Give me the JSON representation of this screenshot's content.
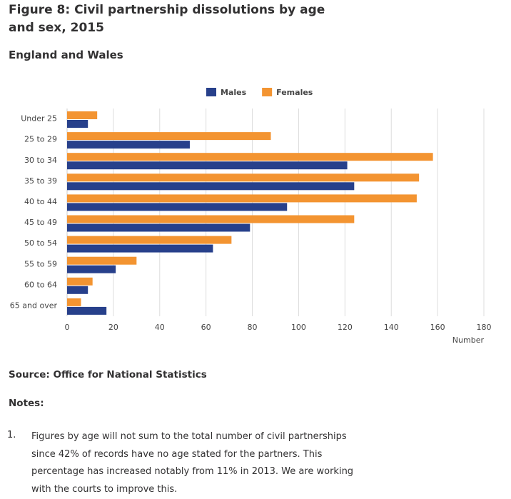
{
  "chart_data": {
    "type": "bar",
    "orientation": "horizontal",
    "title": "Figure 8: Civil partnership dissolutions by age and sex, 2015",
    "subtitle": "England and Wales",
    "x_label": "Number",
    "categories": [
      "Under 25",
      "25 to 29",
      "30 to 34",
      "35 to 39",
      "40 to 44",
      "45 to 49",
      "50 to 54",
      "55 to 59",
      "60 to 64",
      "65 and over"
    ],
    "series": [
      {
        "name": "Males",
        "color": "#27408b",
        "values": [
          9,
          53,
          121,
          124,
          95,
          79,
          63,
          21,
          9,
          17
        ]
      },
      {
        "name": "Females",
        "color": "#f39431",
        "values": [
          13,
          88,
          158,
          152,
          151,
          124,
          71,
          30,
          11,
          6
        ]
      }
    ],
    "xlim": [
      0,
      180
    ],
    "xticks": [
      0,
      20,
      40,
      60,
      80,
      100,
      120,
      140,
      160,
      180
    ],
    "grid": true,
    "legend": "top"
  },
  "source": "Source: Office for National Statistics",
  "notes_heading": "Notes:",
  "notes": [
    {
      "number": "1.",
      "text": "Figures by age will not sum to the total number of civil partnerships since 42% of records have no age stated for the partners. This percentage has increased notably from 11% in 2013. We are working with the courts to improve this."
    }
  ]
}
